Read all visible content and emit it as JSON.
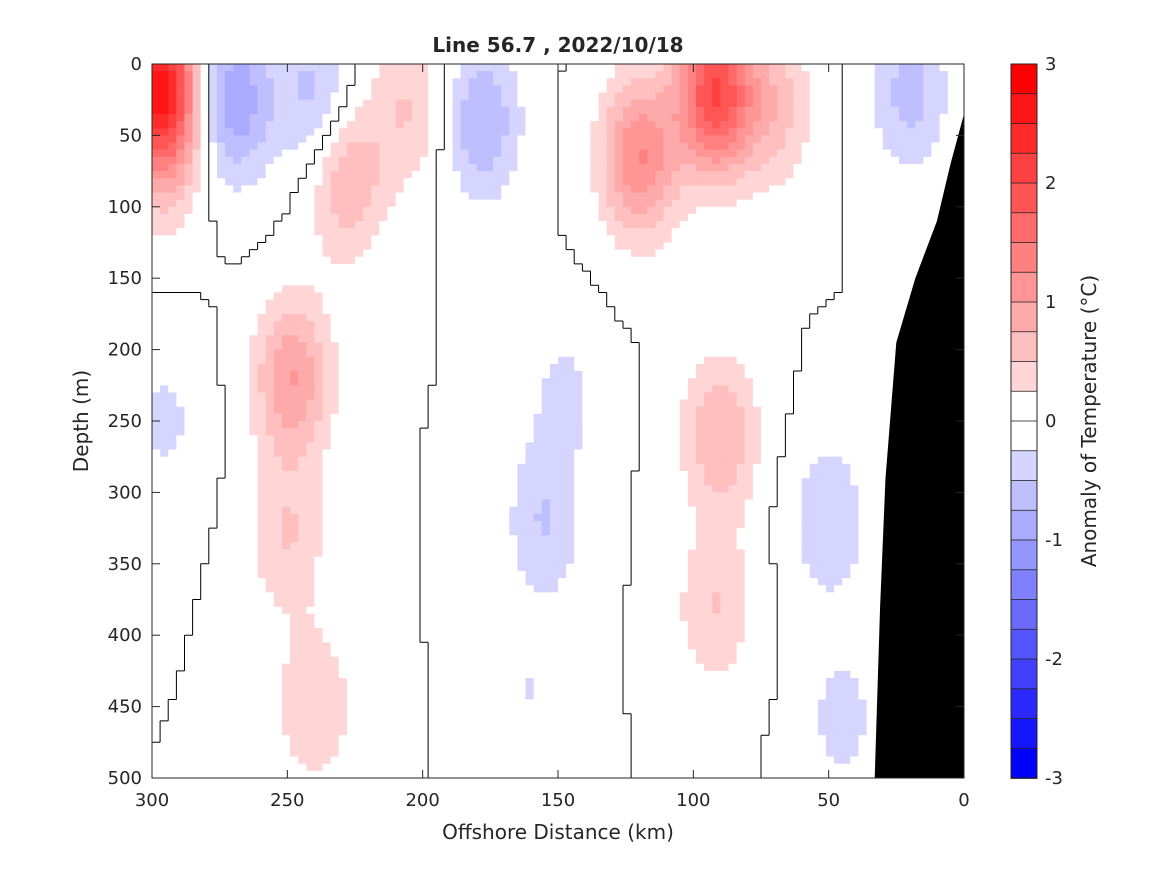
{
  "chart_data": {
    "type": "heatmap",
    "title": "Line 56.7 , 2022/10/18",
    "xlabel": "Offshore Distance (km)",
    "ylabel": "Depth (m)",
    "colorbar_label": "Anomaly of Temperature (°C)",
    "xlim": [
      300,
      0
    ],
    "ylim": [
      0,
      500
    ],
    "clim": [
      -3,
      3
    ],
    "x_reversed": true,
    "y_reversed": true,
    "x_ticks": [
      "300",
      "250",
      "200",
      "150",
      "100",
      "50",
      "0"
    ],
    "y_ticks": [
      "0",
      "50",
      "100",
      "150",
      "200",
      "250",
      "300",
      "350",
      "400",
      "450",
      "500"
    ],
    "colorbar_ticks": [
      "3",
      "2",
      "1",
      "0",
      "-1",
      "-2",
      "-3"
    ],
    "contour_step": 0.25,
    "zero_contour": true,
    "bathymetry_color": "#000000",
    "colors": {
      "cold": "#0000ff",
      "neutral": "#ffffff",
      "warm": "#ff0000"
    },
    "features": [
      {
        "x": 297,
        "y": 15,
        "value": 2.5
      },
      {
        "x": 295,
        "y": 65,
        "value": 0.5
      },
      {
        "x": 270,
        "y": 25,
        "value": -1.0
      },
      {
        "x": 240,
        "y": 22,
        "value": -0.6
      },
      {
        "x": 248,
        "y": 220,
        "value": 1.0
      },
      {
        "x": 250,
        "y": 330,
        "value": 0.5
      },
      {
        "x": 240,
        "y": 450,
        "value": 0.5
      },
      {
        "x": 228,
        "y": 80,
        "value": 0.75
      },
      {
        "x": 205,
        "y": 30,
        "value": 0.5
      },
      {
        "x": 178,
        "y": 40,
        "value": -0.75
      },
      {
        "x": 155,
        "y": 320,
        "value": -0.5
      },
      {
        "x": 148,
        "y": 230,
        "value": -0.3
      },
      {
        "x": 160,
        "y": 440,
        "value": -0.25
      },
      {
        "x": 92,
        "y": 20,
        "value": 2.0
      },
      {
        "x": 120,
        "y": 65,
        "value": 1.25
      },
      {
        "x": 70,
        "y": 30,
        "value": 0.6
      },
      {
        "x": 90,
        "y": 260,
        "value": 0.75
      },
      {
        "x": 92,
        "y": 380,
        "value": 0.5
      },
      {
        "x": 50,
        "y": 320,
        "value": -0.5
      },
      {
        "x": 45,
        "y": 460,
        "value": -0.35
      },
      {
        "x": 20,
        "y": 20,
        "value": -0.6
      },
      {
        "x": 295,
        "y": 250,
        "value": -0.3
      }
    ],
    "bathymetry": [
      {
        "x": 0,
        "depth": 35
      },
      {
        "x": 5,
        "depth": 70
      },
      {
        "x": 10,
        "depth": 110
      },
      {
        "x": 18,
        "depth": 150
      },
      {
        "x": 25,
        "depth": 195
      },
      {
        "x": 29,
        "depth": 290
      },
      {
        "x": 31,
        "depth": 380
      },
      {
        "x": 33,
        "depth": 500
      }
    ]
  }
}
